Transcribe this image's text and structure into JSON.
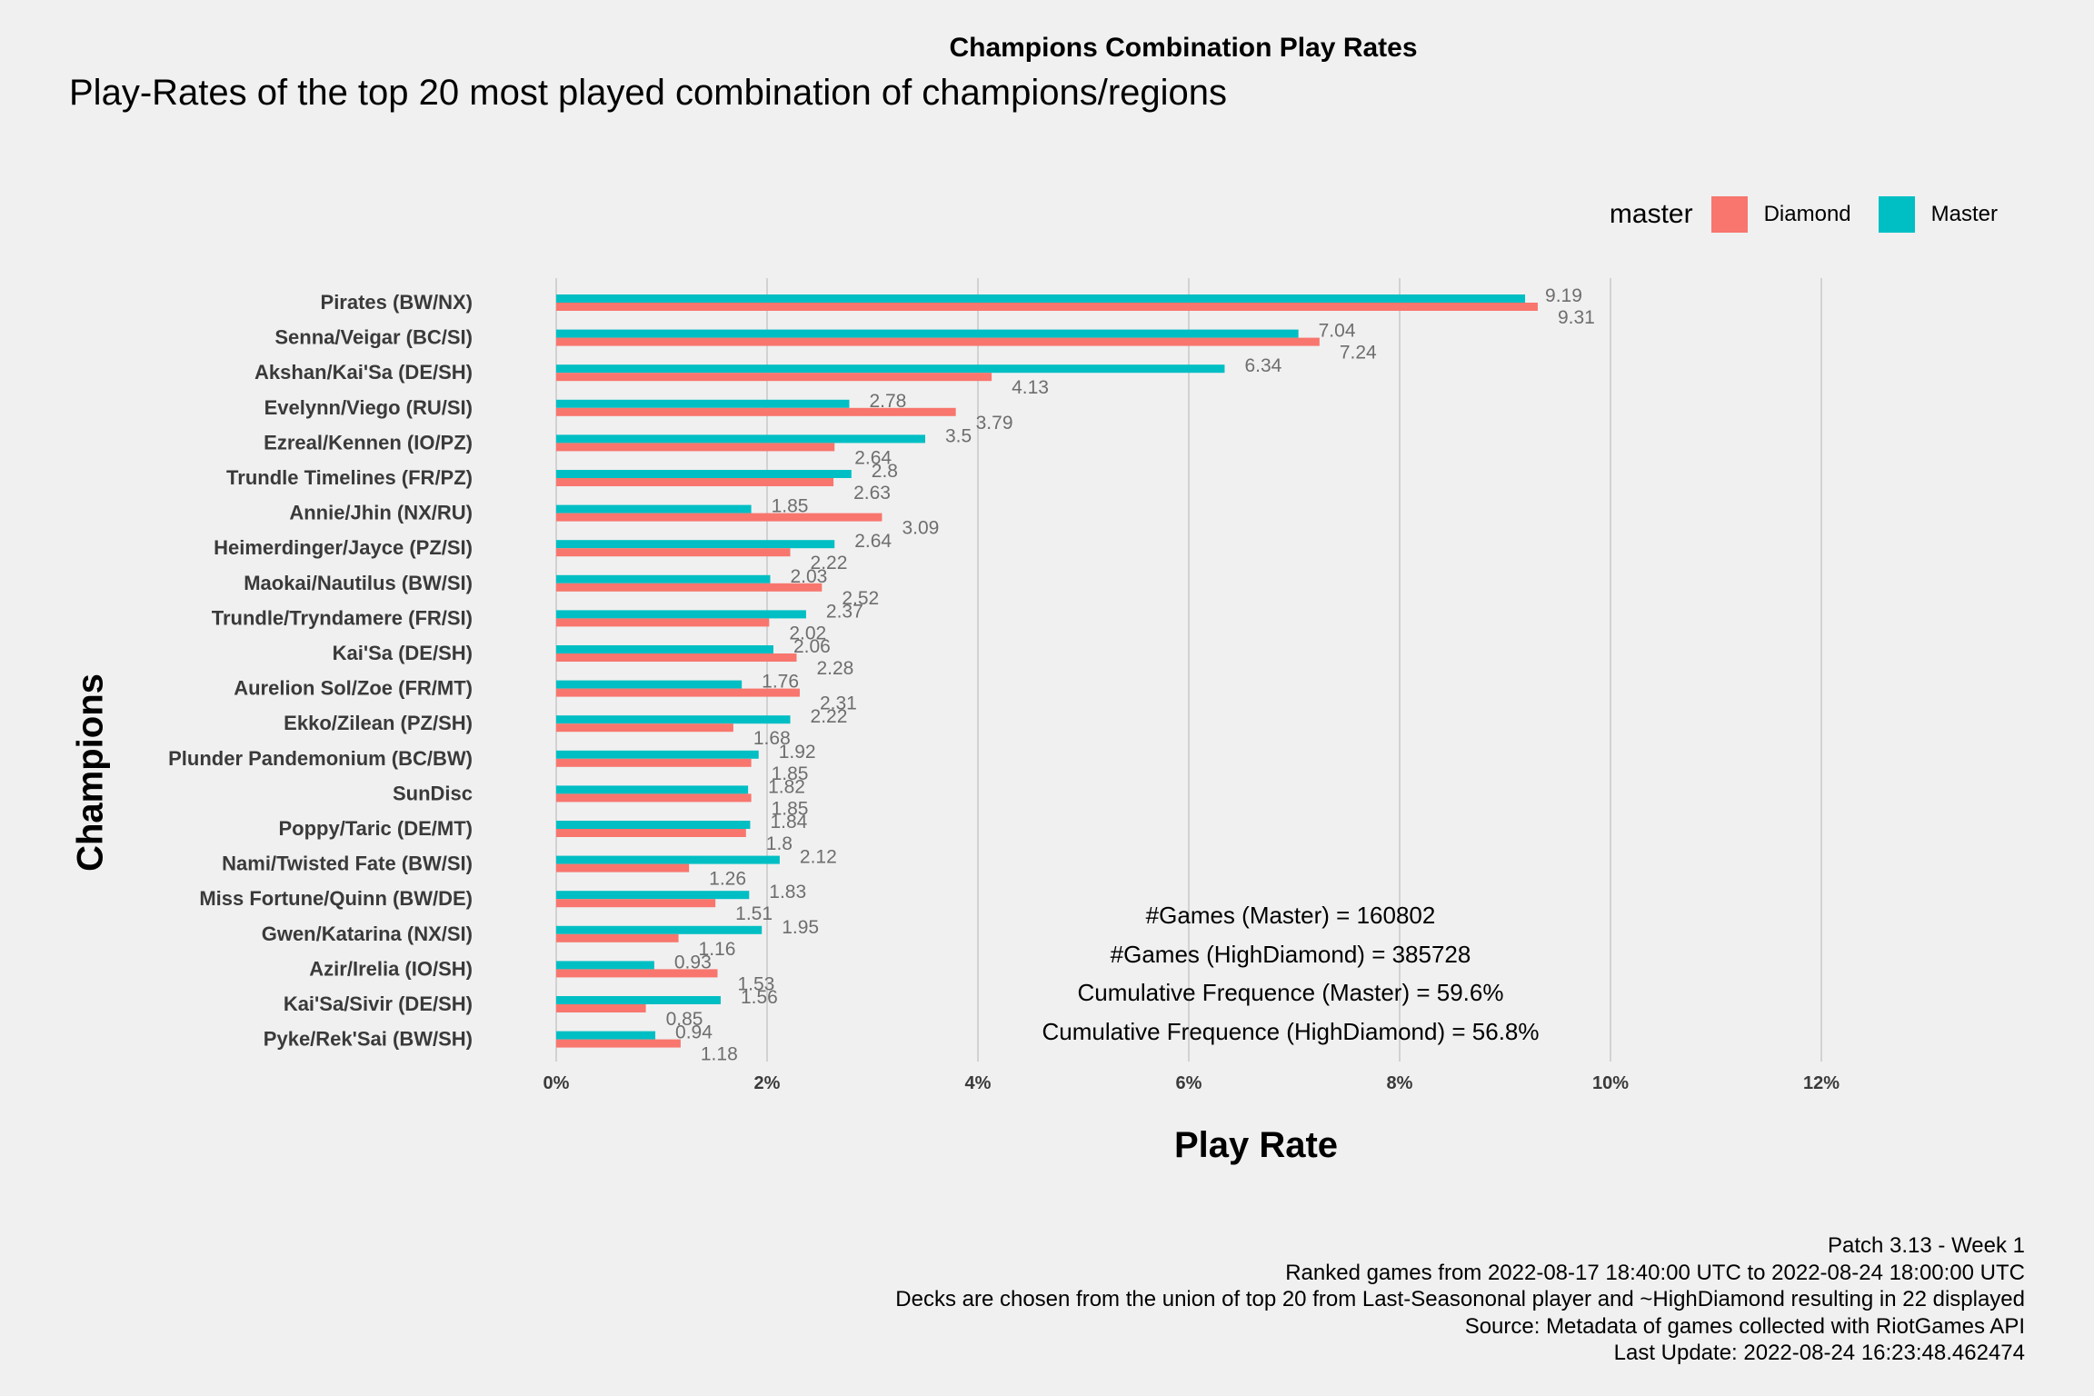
{
  "title": "Champions Combination Play Rates",
  "subtitle": "Play-Rates of the top 20 most played combination of champions/regions",
  "legend": {
    "title": "master",
    "items": [
      {
        "label": "Diamond",
        "color": "#F8766D"
      },
      {
        "label": "Master",
        "color": "#00BFC4"
      }
    ]
  },
  "stats": [
    "#Games (Master) = 160802",
    "#Games (HighDiamond) = 385728",
    "Cumulative Frequence (Master) = 59.6%",
    "Cumulative Frequence (HighDiamond) = 56.8%"
  ],
  "caption": [
    "Patch 3.13 - Week 1",
    "Ranked games from 2022-08-17 18:40:00 UTC to 2022-08-24 18:00:00 UTC",
    "Decks are chosen from the union of top 20 from Last-Seasononal player and ~HighDiamond resulting in 22 displayed",
    "Source: Metadata of games collected with RiotGames API",
    "Last Update: 2022-08-24 16:23:48.462474"
  ],
  "chart_data": {
    "type": "bar",
    "orientation": "horizontal",
    "title": "Champions Combination Play Rates",
    "xlabel": "Play Rate",
    "ylabel": "Champions",
    "xlim": [
      0,
      12
    ],
    "xticks": [
      "0%",
      "2%",
      "4%",
      "6%",
      "8%",
      "10%",
      "12%"
    ],
    "grid": "vertical major",
    "legend_position": "top-right",
    "categories": [
      "Pirates (BW/NX)",
      "Senna/Veigar (BC/SI)",
      "Akshan/Kai'Sa (DE/SH)",
      "Evelynn/Viego (RU/SI)",
      "Ezreal/Kennen (IO/PZ)",
      "Trundle Timelines (FR/PZ)",
      "Annie/Jhin (NX/RU)",
      "Heimerdinger/Jayce (PZ/SI)",
      "Maokai/Nautilus (BW/SI)",
      "Trundle/Tryndamere (FR/SI)",
      "Kai'Sa (DE/SH)",
      "Aurelion Sol/Zoe (FR/MT)",
      "Ekko/Zilean (PZ/SH)",
      "Plunder Pandemonium (BC/BW)",
      "SunDisc",
      "Poppy/Taric (DE/MT)",
      "Nami/Twisted Fate (BW/SI)",
      "Miss Fortune/Quinn (BW/DE)",
      "Gwen/Katarina (NX/SI)",
      "Azir/Irelia (IO/SH)",
      "Kai'Sa/Sivir (DE/SH)",
      "Pyke/Rek'Sai (BW/SH)"
    ],
    "series": [
      {
        "name": "Master",
        "color": "#00BFC4",
        "values": [
          9.19,
          7.04,
          6.34,
          2.78,
          3.5,
          2.8,
          1.85,
          2.64,
          2.03,
          2.37,
          2.06,
          1.76,
          2.22,
          1.92,
          1.82,
          1.84,
          2.12,
          1.83,
          1.95,
          0.93,
          1.56,
          0.94
        ],
        "labels": [
          "9.19",
          "7.04",
          "6.34",
          "2.78",
          "3.5",
          "2.8",
          "1.85",
          "2.64",
          "2.03",
          "2.37",
          "2.06",
          "1.76",
          "2.22",
          "1.92",
          "1.82",
          "1.84",
          "2.12",
          "1.83",
          "1.95",
          "0.93",
          "1.56",
          "0.94"
        ]
      },
      {
        "name": "Diamond",
        "color": "#F8766D",
        "values": [
          9.31,
          7.24,
          4.13,
          3.79,
          2.64,
          2.63,
          3.09,
          2.22,
          2.52,
          2.02,
          2.28,
          2.31,
          1.68,
          1.85,
          1.85,
          1.8,
          1.26,
          1.51,
          1.16,
          1.53,
          0.85,
          1.18
        ],
        "labels": [
          "9.31",
          "7.24",
          "4.13",
          "3.79",
          "2.64",
          "2.63",
          "3.09",
          "2.22",
          "2.52",
          "2.02",
          "2.28",
          "2.31",
          "1.68",
          "1.85",
          "1.85",
          "1.8",
          "1.26",
          "1.51",
          "1.16",
          "1.53",
          "0.85",
          "1.18"
        ]
      }
    ]
  }
}
